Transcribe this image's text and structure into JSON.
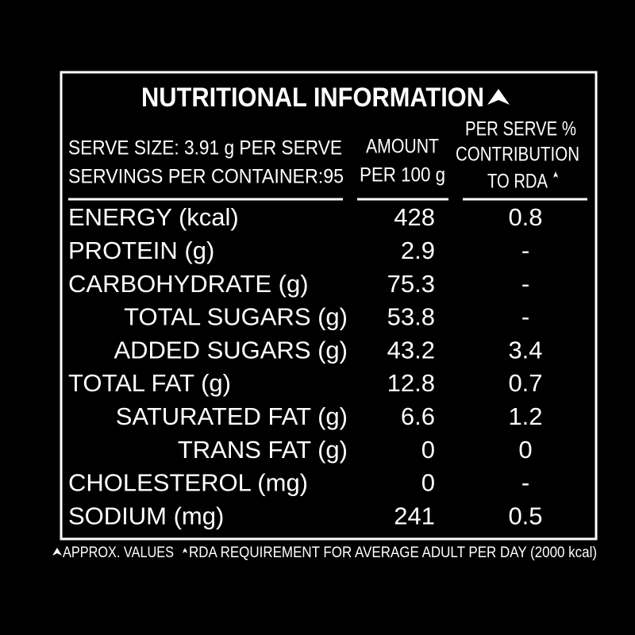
{
  "label": {
    "title": "NUTRITIONAL INFORMATION",
    "serve_size": "SERVE SIZE: 3.91 g PER SERVE",
    "servings": "SERVINGS PER CONTAINER:95",
    "col_amount": [
      "AMOUNT",
      "PER 100 g"
    ],
    "col_rda": [
      "PER SERVE %",
      "CONTRIBUTION",
      "TO RDA"
    ],
    "rows": [
      [
        "ENERGY (kcal)",
        428,
        0.8
      ],
      [
        "PROTEIN (g)",
        2.9,
        "-"
      ],
      [
        "CARBOHYDRATE (g)",
        75.3,
        "-"
      ],
      [
        "TOTAL SUGARS (g)",
        53.8,
        "-"
      ],
      [
        "ADDED SUGARS (g)",
        43.2,
        3.4
      ],
      [
        "TOTAL FAT (g)",
        12.8,
        0.7
      ],
      [
        "SATURATED FAT (g)",
        6.6,
        1.2
      ],
      [
        "TRANS FAT (g)",
        0,
        0
      ],
      [
        "CHOLESTEROL (mg)",
        0,
        "-"
      ],
      [
        "SODIUM (mg)",
        241,
        0.5
      ]
    ],
    "footnote_1": "APPROX. VALUES",
    "footnote_2": "RDA REQUIREMENT FOR AVERAGE ADULT PER DAY (2000 kcal)"
  }
}
